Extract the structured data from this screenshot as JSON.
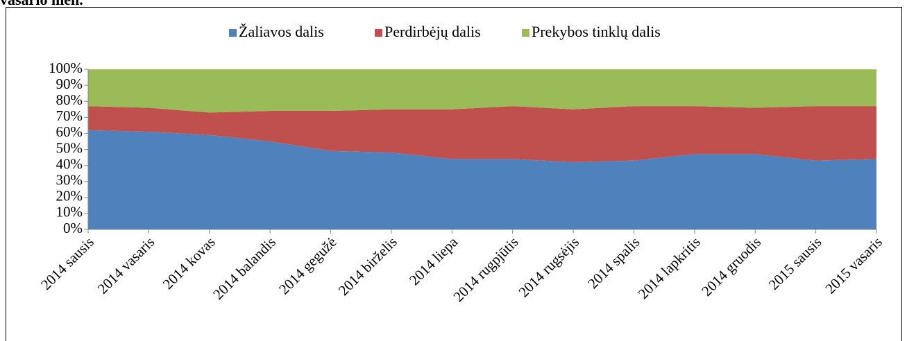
{
  "chart_data": {
    "type": "stacked_area",
    "title": "vasario mėn.",
    "categories": [
      "2014 sausis",
      "2014 vasaris",
      "2014 kovas",
      "2014 balandis",
      "2014 gegužė",
      "2014 birželis",
      "2014 liepa",
      "2014 rugpjūtis",
      "2014 rugsėjis",
      "2014 spalis",
      "2014 lapkritis",
      "2014 gruodis",
      "2015 sausis",
      "2015 vasaris"
    ],
    "series": [
      {
        "name": "Žaliavos dalis",
        "color": "#4f81bd",
        "values": [
          62,
          61,
          59,
          55,
          49,
          48,
          44,
          44,
          42,
          43,
          47,
          47,
          43,
          44
        ]
      },
      {
        "name": "Perdirbėjų dalis",
        "color": "#c0504d",
        "values": [
          15,
          15,
          14,
          19,
          25,
          27,
          31,
          33,
          33,
          34,
          30,
          29,
          34,
          33
        ]
      },
      {
        "name": "Prekybos tinklų dalis",
        "color": "#9bbb59",
        "values": [
          23,
          24,
          27,
          26,
          26,
          25,
          25,
          23,
          25,
          23,
          23,
          24,
          23,
          23
        ]
      }
    ],
    "ylim": [
      0,
      100
    ],
    "yticks": [
      {
        "value": 0,
        "label": "0%"
      },
      {
        "value": 10,
        "label": "10%"
      },
      {
        "value": 20,
        "label": "20%"
      },
      {
        "value": 30,
        "label": "30%"
      },
      {
        "value": 40,
        "label": "40%"
      },
      {
        "value": 50,
        "label": "50%"
      },
      {
        "value": 60,
        "label": "60%"
      },
      {
        "value": 70,
        "label": "70%"
      },
      {
        "value": 80,
        "label": "80%"
      },
      {
        "value": 90,
        "label": "90%"
      },
      {
        "value": 100,
        "label": "100%"
      }
    ],
    "legend": "top",
    "grid": false
  }
}
